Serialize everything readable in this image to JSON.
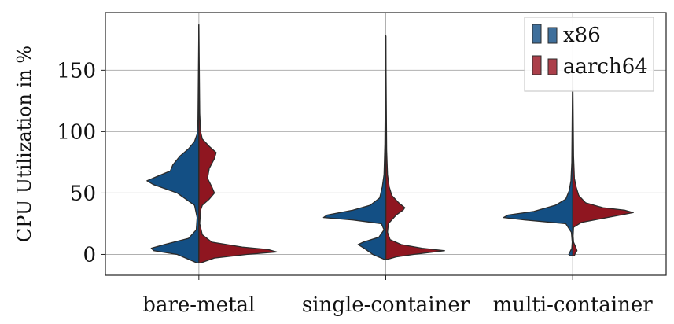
{
  "chart_data": {
    "type": "split-violin",
    "title": "",
    "xlabel": "",
    "ylabel": "CPU Utilization in %",
    "ylim": [
      -17,
      197
    ],
    "yticks": [
      0,
      50,
      100,
      150
    ],
    "grid": true,
    "legend_position": "top-right",
    "categories": [
      "bare-metal",
      "single-container",
      "multi-container"
    ],
    "series": [
      {
        "name": "x86",
        "color": "#134f84",
        "legend_color": "#3f6f9b",
        "ranges": [
          [
            -7,
            187
          ],
          [
            -4,
            178
          ],
          [
            -1,
            155
          ]
        ],
        "density": [
          [
            [
              -7,
              0.02
            ],
            [
              0,
              0.25
            ],
            [
              3,
              0.52
            ],
            [
              5,
              0.55
            ],
            [
              8,
              0.4
            ],
            [
              13,
              0.12
            ],
            [
              20,
              0.03
            ],
            [
              30,
              0.02
            ],
            [
              40,
              0.05
            ],
            [
              50,
              0.25
            ],
            [
              57,
              0.53
            ],
            [
              60,
              0.6
            ],
            [
              63,
              0.5
            ],
            [
              68,
              0.33
            ],
            [
              73,
              0.3
            ],
            [
              80,
              0.22
            ],
            [
              86,
              0.12
            ],
            [
              92,
              0.05
            ],
            [
              98,
              0.02
            ],
            [
              110,
              0.01
            ],
            [
              187,
              0
            ]
          ],
          [
            [
              -4,
              0.02
            ],
            [
              0,
              0.15
            ],
            [
              5,
              0.25
            ],
            [
              8,
              0.32
            ],
            [
              10,
              0.26
            ],
            [
              14,
              0.08
            ],
            [
              20,
              0.02
            ],
            [
              25,
              0.05
            ],
            [
              28,
              0.38
            ],
            [
              30,
              0.72
            ],
            [
              32,
              0.68
            ],
            [
              36,
              0.38
            ],
            [
              40,
              0.18
            ],
            [
              46,
              0.07
            ],
            [
              55,
              0.04
            ],
            [
              65,
              0.02
            ],
            [
              90,
              0.01
            ],
            [
              178,
              0
            ]
          ],
          [
            [
              -1,
              0.03
            ],
            [
              0,
              0.045
            ],
            [
              5,
              0.01
            ],
            [
              10,
              0.005
            ],
            [
              18,
              0.015
            ],
            [
              25,
              0.08
            ],
            [
              28,
              0.55
            ],
            [
              30,
              0.8
            ],
            [
              32,
              0.75
            ],
            [
              35,
              0.45
            ],
            [
              40,
              0.2
            ],
            [
              45,
              0.08
            ],
            [
              52,
              0.04
            ],
            [
              60,
              0.02
            ],
            [
              75,
              0.01
            ],
            [
              155,
              0
            ]
          ]
        ]
      },
      {
        "name": "aarch64",
        "color": "#8f1620",
        "legend_color": "#ab3f4a",
        "ranges": [
          [
            -7,
            187
          ],
          [
            -4,
            178
          ],
          [
            -1,
            155
          ]
        ],
        "density": [
          [
            [
              -7,
              0.02
            ],
            [
              -3,
              0.18
            ],
            [
              0,
              0.55
            ],
            [
              2,
              0.9
            ],
            [
              4,
              0.8
            ],
            [
              6,
              0.5
            ],
            [
              10,
              0.15
            ],
            [
              16,
              0.04
            ],
            [
              25,
              0.01
            ],
            [
              36,
              0.02
            ],
            [
              40,
              0.04
            ],
            [
              45,
              0.12
            ],
            [
              50,
              0.18
            ],
            [
              55,
              0.15
            ],
            [
              62,
              0.1
            ],
            [
              70,
              0.12
            ],
            [
              78,
              0.18
            ],
            [
              83,
              0.2
            ],
            [
              88,
              0.12
            ],
            [
              94,
              0.04
            ],
            [
              100,
              0.02
            ],
            [
              115,
              0.01
            ],
            [
              187,
              0
            ]
          ],
          [
            [
              -4,
              0.02
            ],
            [
              -2,
              0.12
            ],
            [
              0,
              0.32
            ],
            [
              3,
              0.68
            ],
            [
              5,
              0.42
            ],
            [
              8,
              0.18
            ],
            [
              12,
              0.05
            ],
            [
              18,
              0.02
            ],
            [
              25,
              0.03
            ],
            [
              32,
              0.12
            ],
            [
              36,
              0.2
            ],
            [
              38,
              0.22
            ],
            [
              42,
              0.15
            ],
            [
              48,
              0.07
            ],
            [
              55,
              0.04
            ],
            [
              65,
              0.02
            ],
            [
              85,
              0.01
            ],
            [
              178,
              0
            ]
          ],
          [
            [
              -1,
              0.02
            ],
            [
              1,
              0.03
            ],
            [
              3,
              0.05
            ],
            [
              6,
              0.035
            ],
            [
              10,
              0.01
            ],
            [
              15,
              0.005
            ],
            [
              22,
              0.01
            ],
            [
              26,
              0.1
            ],
            [
              30,
              0.4
            ],
            [
              34,
              0.7
            ],
            [
              36,
              0.6
            ],
            [
              38,
              0.35
            ],
            [
              42,
              0.15
            ],
            [
              48,
              0.07
            ],
            [
              55,
              0.04
            ],
            [
              62,
              0.02
            ],
            [
              80,
              0.01
            ],
            [
              155,
              0
            ]
          ]
        ]
      }
    ]
  }
}
